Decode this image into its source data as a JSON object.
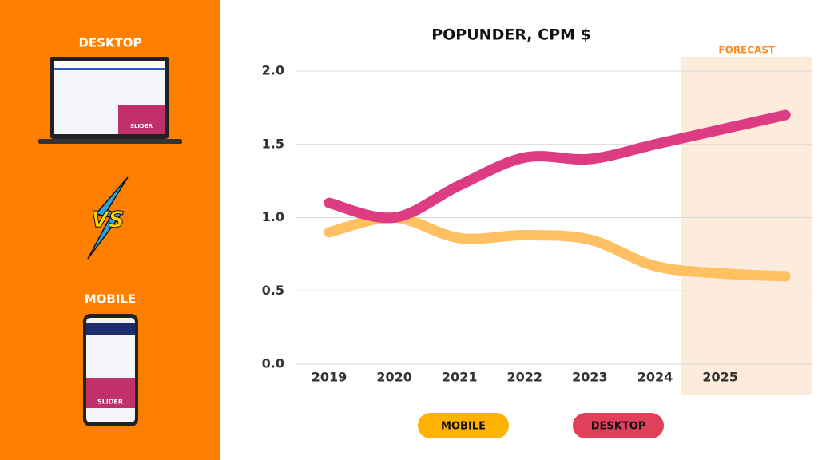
{
  "left_panel": {
    "desktop_label": "DESKTOP",
    "versus": "VS",
    "mobile_label": "MOBILE",
    "desktop_slider": "SLIDER",
    "mobile_slider": "SLIDER"
  },
  "chart_data": {
    "type": "line",
    "title": "POPUNDER, CPM $",
    "annotation": "FORECAST",
    "categories": [
      "2019",
      "2020",
      "2021",
      "2022",
      "2023",
      "2024",
      "2025",
      null
    ],
    "series": [
      {
        "name": "MOBILE",
        "color": "#ffc062",
        "legend_color": "#ffb300",
        "values": [
          0.9,
          1.0,
          0.86,
          0.88,
          0.85,
          0.67,
          0.62,
          0.6
        ]
      },
      {
        "name": "DESKTOP",
        "color": "#dd3b82",
        "legend_color": "#e0405a",
        "values": [
          1.1,
          1.0,
          1.22,
          1.41,
          1.4,
          1.5,
          1.6,
          1.7
        ]
      }
    ],
    "ylim": [
      0,
      2.0
    ],
    "yticks": [
      {
        "value": 0,
        "label": "0.0"
      },
      0.5,
      {
        "value": 1,
        "label": "1.0"
      },
      1.5,
      {
        "value": 2,
        "label": "2.0"
      }
    ],
    "grid": true
  }
}
